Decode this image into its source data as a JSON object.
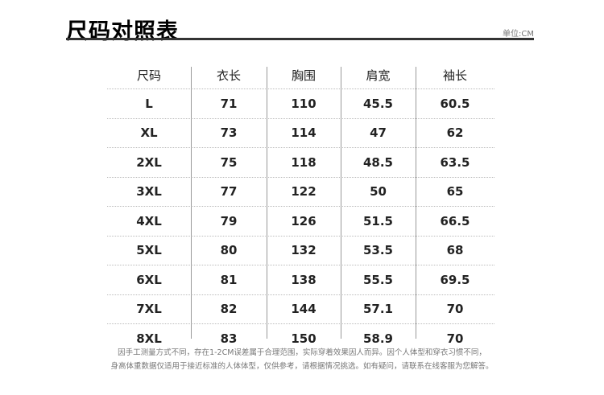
{
  "header": {
    "title": "尺码对照表",
    "unit": "单位:CM"
  },
  "table": {
    "columns": [
      "尺码",
      "衣长",
      "胸围",
      "肩宽",
      "袖长"
    ],
    "rows": [
      [
        "L",
        "71",
        "110",
        "45.5",
        "60.5"
      ],
      [
        "XL",
        "73",
        "114",
        "47",
        "62"
      ],
      [
        "2XL",
        "75",
        "118",
        "48.5",
        "63.5"
      ],
      [
        "3XL",
        "77",
        "122",
        "50",
        "65"
      ],
      [
        "4XL",
        "79",
        "126",
        "51.5",
        "66.5"
      ],
      [
        "5XL",
        "80",
        "132",
        "53.5",
        "68"
      ],
      [
        "6XL",
        "81",
        "138",
        "55.5",
        "69.5"
      ],
      [
        "7XL",
        "82",
        "144",
        "57.1",
        "70"
      ],
      [
        "8XL",
        "83",
        "150",
        "58.9",
        "70"
      ]
    ]
  },
  "notes": [
    "因手工测量方式不同，存在1-2CM误差属于合理范围，实际穿着效果因人而异。因个人体型和穿衣习惯不同，",
    "身高体重数据仅适用于接近标准的人体体型，仅供参考，请根据情况挑选。如有疑问，请联系在线客服为您解答。"
  ]
}
